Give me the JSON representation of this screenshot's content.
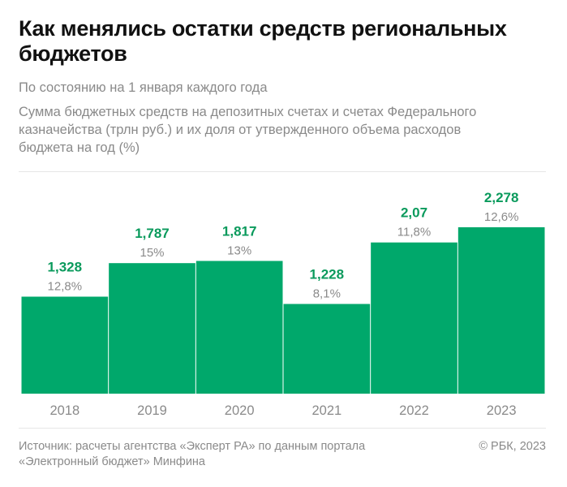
{
  "title": "Как менялись остатки средств региональных бюджетов",
  "subtitle1": "По состоянию на 1 января каждого года",
  "subtitle2": "Сумма бюджетных средств на депозитных счетах и счетах Федерального казначейства (трлн руб.) и их доля от утвержденного объема расходов бюджета на год (%)",
  "source": "Источник: расчеты агентства «Эксперт РА» по данным портала «Электронный бюджет» Минфина",
  "copyright": "© РБК, 2023",
  "chart_data": {
    "type": "bar",
    "categories": [
      "2018",
      "2019",
      "2020",
      "2021",
      "2022",
      "2023"
    ],
    "values": [
      1.328,
      1.787,
      1.817,
      1.228,
      2.07,
      2.278
    ],
    "value_labels": [
      "1,328",
      "1,787",
      "1,817",
      "1,228",
      "2,07",
      "2,278"
    ],
    "share_labels": [
      "12,8%",
      "15%",
      "13%",
      "8,1%",
      "11,8%",
      "12,6%"
    ],
    "ylim": [
      0,
      2.278
    ],
    "grid": false,
    "colors": {
      "bar": "#00a86b",
      "value_label": "#0a9a5c",
      "share_label": "#8a8a8a"
    }
  }
}
